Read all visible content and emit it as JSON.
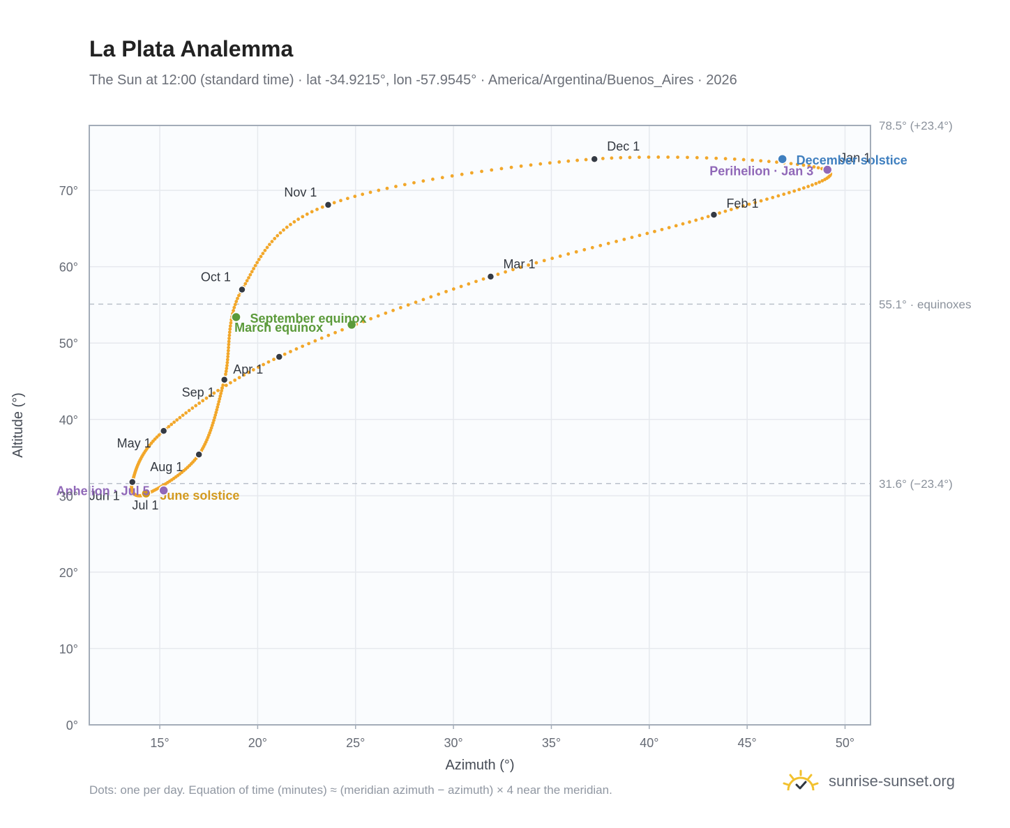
{
  "header": {
    "title": "La Plata Analemma",
    "subtitle": "The Sun at 12:00 (standard time) · lat -34.9215°, lon -57.9545° · America/Argentina/Buenos_Aires · 2026"
  },
  "footer": {
    "note": "Dots: one per day. Equation of time (minutes) ≈ (meridian azimuth − azimuth) × 4 near the meridian.",
    "brand": "sunrise-sunset.org",
    "brand_icon": "sun-logo-icon"
  },
  "colors": {
    "curve": "#f2a72a",
    "month_dot": "#343a44",
    "equinox": "#5b9a3a",
    "december_solstice": "#3f7fbf",
    "june_solstice": "#d39a1f",
    "apsis": "#9068b8",
    "plot_bg": "#fafcfe",
    "grid": "#e6e9ee",
    "frame": "#a3acb8"
  },
  "chart_data": {
    "type": "scatter",
    "xlabel": "Azimuth (°)",
    "ylabel": "Altitude (°)",
    "xlim": [
      11.4,
      51.3
    ],
    "ylim": [
      0,
      78.5
    ],
    "x_ticks": [
      15,
      20,
      25,
      30,
      35,
      40,
      45,
      50
    ],
    "x_tick_labels": [
      "15°",
      "20°",
      "25°",
      "30°",
      "35°",
      "40°",
      "45°",
      "50°"
    ],
    "y_ticks": [
      0,
      10,
      20,
      30,
      40,
      50,
      60,
      70
    ],
    "y_tick_labels": [
      "0°",
      "10°",
      "20°",
      "30°",
      "40°",
      "50°",
      "60°",
      "70°"
    ],
    "grid": true,
    "reference_lines": [
      {
        "y": 78.5,
        "label": "78.5° (+23.4°)"
      },
      {
        "y": 55.1,
        "label": "55.1° · equinoxes"
      },
      {
        "y": 31.6,
        "label": "31.6° (−23.4°)"
      }
    ],
    "month_markers": [
      {
        "label": "Jan 1",
        "x": 49.1,
        "y": 72.6
      },
      {
        "label": "Feb 1",
        "x": 43.3,
        "y": 66.8
      },
      {
        "label": "Mar 1",
        "x": 31.9,
        "y": 58.7
      },
      {
        "label": "Apr 1",
        "x": 21.1,
        "y": 48.2
      },
      {
        "label": "May 1",
        "x": 15.2,
        "y": 38.5
      },
      {
        "label": "Jun 1",
        "x": 13.6,
        "y": 31.8
      },
      {
        "label": "Jul 1",
        "x": 14.3,
        "y": 30.2
      },
      {
        "label": "Aug 1",
        "x": 17.0,
        "y": 35.4
      },
      {
        "label": "Sep 1",
        "x": 18.3,
        "y": 45.2
      },
      {
        "label": "Oct 1",
        "x": 19.2,
        "y": 57.0
      },
      {
        "label": "Nov 1",
        "x": 23.6,
        "y": 68.1
      },
      {
        "label": "Dec 1",
        "x": 37.2,
        "y": 74.1
      }
    ],
    "events": [
      {
        "label": "March equinox",
        "x": 24.8,
        "y": 52.4,
        "color": "#5b9a3a"
      },
      {
        "label": "September equinox",
        "x": 18.9,
        "y": 53.4,
        "color": "#5b9a3a"
      },
      {
        "label": "December solstice",
        "x": 46.8,
        "y": 74.1,
        "color": "#3f7fbf"
      },
      {
        "label": "June solstice",
        "x": 14.3,
        "y": 30.3,
        "color": "#d39a1f"
      },
      {
        "label": "Perihelion · Jan 3",
        "x": 49.1,
        "y": 72.7,
        "color": "#9068b8"
      },
      {
        "label": "Aphelion · Jul 5",
        "x": 15.2,
        "y": 30.7,
        "color": "#9068b8"
      }
    ],
    "analemma_path": [
      [
        49.1,
        72.6
      ],
      [
        43.3,
        66.8
      ],
      [
        31.9,
        58.7
      ],
      [
        21.1,
        48.2
      ],
      [
        15.2,
        38.5
      ],
      [
        13.6,
        31.8
      ],
      [
        14.3,
        30.2
      ],
      [
        17.0,
        35.4
      ],
      [
        18.3,
        45.2
      ],
      [
        19.2,
        57.0
      ],
      [
        23.6,
        68.1
      ],
      [
        37.2,
        74.1
      ]
    ]
  }
}
